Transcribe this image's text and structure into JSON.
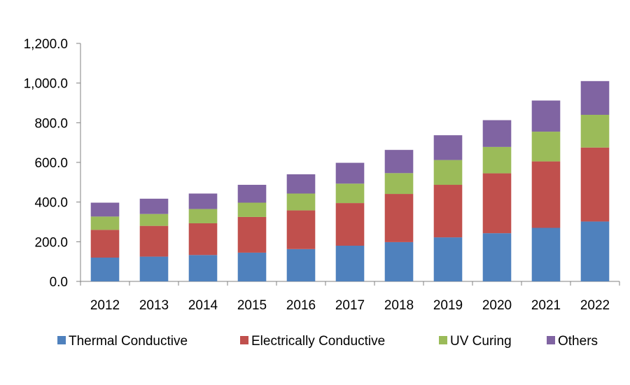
{
  "chart_data": {
    "type": "bar",
    "stacked": true,
    "title": "",
    "xlabel": "",
    "ylabel": "",
    "ylim": [
      0,
      1200
    ],
    "yticks": [
      0,
      200,
      400,
      600,
      800,
      1000,
      1200
    ],
    "ytick_labels": [
      "0.0",
      "200.0",
      "400.0",
      "600.0",
      "800.0",
      "1,000.0",
      "1,200.0"
    ],
    "grid": false,
    "legend_position": "bottom",
    "categories": [
      "2012",
      "2013",
      "2014",
      "2015",
      "2016",
      "2017",
      "2018",
      "2019",
      "2020",
      "2021",
      "2022"
    ],
    "series": [
      {
        "name": "Thermal Conductive",
        "color": "#4f81bd",
        "values": [
          120,
          125,
          133,
          145,
          163,
          180,
          198,
          222,
          243,
          270,
          302
        ]
      },
      {
        "name": "Electrically Conductive",
        "color": "#c0504d",
        "values": [
          140,
          155,
          160,
          180,
          195,
          215,
          243,
          265,
          302,
          335,
          373
        ]
      },
      {
        "name": "UV Curing",
        "color": "#9bbb59",
        "values": [
          67,
          60,
          72,
          72,
          85,
          98,
          105,
          125,
          133,
          150,
          165
        ]
      },
      {
        "name": "Others",
        "color": "#8064a2",
        "values": [
          70,
          77,
          78,
          90,
          97,
          105,
          117,
          125,
          135,
          157,
          170
        ]
      }
    ]
  }
}
